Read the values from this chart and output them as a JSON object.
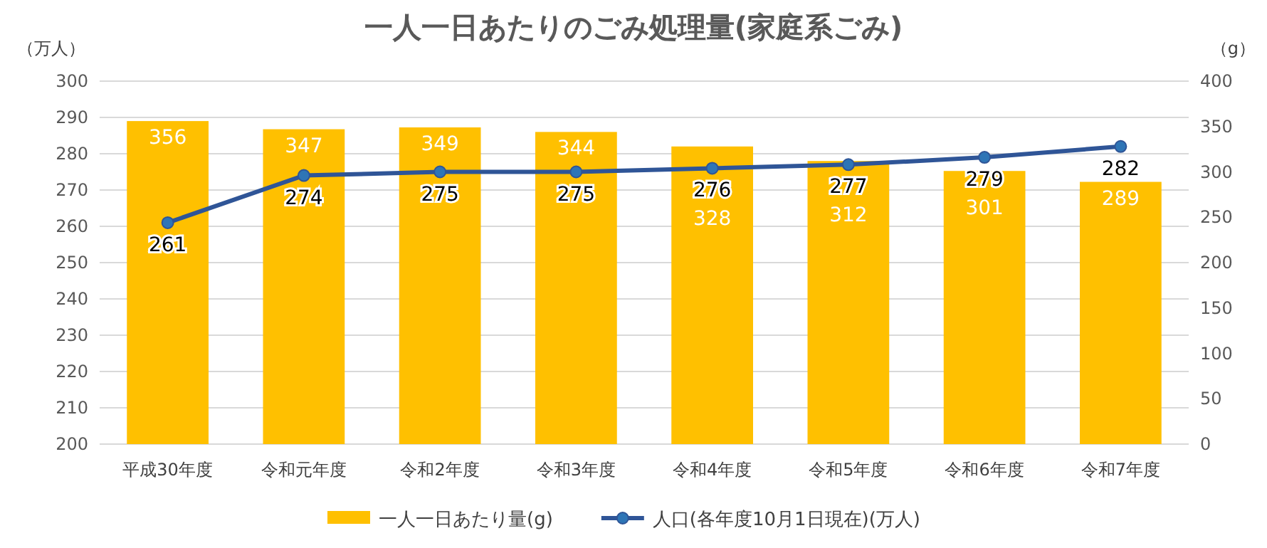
{
  "chart_data": {
    "type": "bar",
    "title": "一人一日あたりのごみ処理量(家庭系ごみ)",
    "ylabel": "（万人）",
    "y2label": "（g）",
    "categories": [
      "平成30年度",
      "令和元年度",
      "令和2年度",
      "令和3年度",
      "令和4年度",
      "令和5年度",
      "令和6年度",
      "令和7年度"
    ],
    "series": [
      {
        "name": "一人一日あたり量(g)",
        "axis": "y2",
        "color": "#ffc000",
        "values": [
          356,
          347,
          349,
          344,
          328,
          312,
          301,
          289
        ]
      },
      {
        "name": "人口(各年度10月1日現在)(万人)",
        "type": "line",
        "axis": "y",
        "color": "#2f5597",
        "marker": "circle",
        "values": [
          261,
          274,
          275,
          275,
          276,
          277,
          279,
          282
        ]
      }
    ],
    "ylim": [
      200,
      300
    ],
    "yticks": [
      200,
      210,
      220,
      230,
      240,
      250,
      260,
      270,
      280,
      290,
      300
    ],
    "y2lim": [
      0,
      400
    ],
    "y2ticks": [
      0,
      50,
      100,
      150,
      200,
      250,
      300,
      350,
      400
    ],
    "grid": "y",
    "legend": "bottom",
    "data_labels": true
  }
}
